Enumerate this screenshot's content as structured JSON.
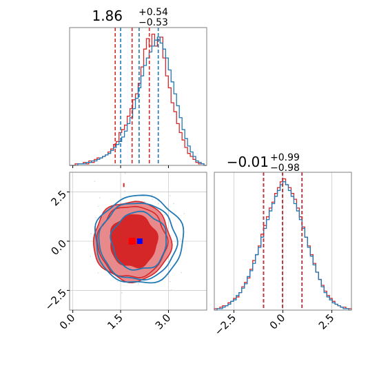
{
  "colors": {
    "red": "#d62728",
    "blue": "#1f77b4",
    "red_fill": "#e88a8b",
    "marker_red": "#ff0000",
    "marker_blue": "#0000ff"
  },
  "chart_data": [
    {
      "type": "histogram",
      "panel": "param-1-marginal",
      "title": {
        "main": "1.86",
        "upper": "+0.54",
        "lower": "−0.53"
      },
      "xlim": [
        -0.1,
        4.2
      ],
      "quantiles": {
        "red": [
          1.33,
          1.86,
          2.4
        ],
        "blue": [
          1.5,
          2.08,
          2.68
        ]
      },
      "bin_start": -0.1,
      "bin_width": 0.086,
      "series": [
        {
          "color": "red",
          "counts": [
            0,
            0,
            1,
            1,
            1,
            2,
            1,
            3,
            2,
            4,
            5,
            5,
            6,
            7,
            9,
            11,
            14,
            16,
            22,
            24,
            27,
            33,
            38,
            44,
            48,
            55,
            66,
            78,
            85,
            80,
            88,
            80,
            84,
            86,
            72,
            60,
            52,
            42,
            36,
            28,
            22,
            17,
            12,
            8,
            6,
            4,
            2,
            1,
            1,
            0
          ]
        },
        {
          "color": "blue",
          "counts": [
            0,
            0,
            0,
            1,
            1,
            1,
            2,
            2,
            3,
            3,
            4,
            5,
            6,
            7,
            8,
            10,
            12,
            14,
            16,
            19,
            23,
            28,
            32,
            38,
            45,
            52,
            60,
            67,
            72,
            76,
            80,
            84,
            86,
            82,
            78,
            72,
            64,
            56,
            48,
            40,
            32,
            24,
            18,
            13,
            9,
            6,
            3,
            2,
            1,
            0
          ]
        }
      ]
    },
    {
      "type": "contour",
      "panel": "joint",
      "xlim": [
        -0.1,
        4.2
      ],
      "ylim": [
        -3.5,
        3.5
      ],
      "xticks": [
        "0.0",
        "1.5",
        "3.0"
      ],
      "xtick_values": [
        0.0,
        1.5,
        3.0
      ],
      "yticks": [
        "−2.5",
        "0.0",
        "2.5"
      ],
      "ytick_values": [
        -2.5,
        0.0,
        2.5
      ],
      "markers": {
        "red": [
          1.86,
          0.0
        ],
        "blue": [
          2.1,
          0.0
        ]
      }
    },
    {
      "type": "histogram",
      "panel": "param-2-marginal",
      "title": {
        "main": "−0.01",
        "upper": "+0.99",
        "lower": "−0.98"
      },
      "xlim": [
        -3.5,
        3.5
      ],
      "xticks": [
        "−2.5",
        "0.0",
        "2.5"
      ],
      "xtick_values": [
        -2.5,
        0.0,
        2.5
      ],
      "quantiles": {
        "red": [
          -0.99,
          -0.01,
          0.98
        ],
        "blue": [
          -0.98,
          -0.02,
          0.97
        ]
      },
      "bin_start": -3.5,
      "bin_width": 0.14,
      "series": [
        {
          "color": "red",
          "counts": [
            1,
            1,
            2,
            3,
            3,
            5,
            6,
            8,
            9,
            12,
            16,
            19,
            22,
            28,
            34,
            38,
            44,
            52,
            58,
            64,
            70,
            74,
            80,
            84,
            88,
            90,
            86,
            84,
            80,
            76,
            70,
            64,
            57,
            50,
            44,
            38,
            32,
            26,
            21,
            17,
            13,
            10,
            8,
            6,
            4,
            3,
            2,
            2,
            1,
            1
          ]
        },
        {
          "color": "blue",
          "counts": [
            0,
            1,
            1,
            2,
            3,
            4,
            6,
            7,
            10,
            12,
            15,
            18,
            23,
            27,
            32,
            38,
            43,
            50,
            56,
            62,
            68,
            73,
            78,
            82,
            86,
            88,
            86,
            82,
            78,
            73,
            68,
            62,
            56,
            50,
            43,
            37,
            31,
            26,
            21,
            16,
            12,
            9,
            7,
            5,
            4,
            3,
            2,
            1,
            1,
            0
          ]
        }
      ]
    }
  ]
}
